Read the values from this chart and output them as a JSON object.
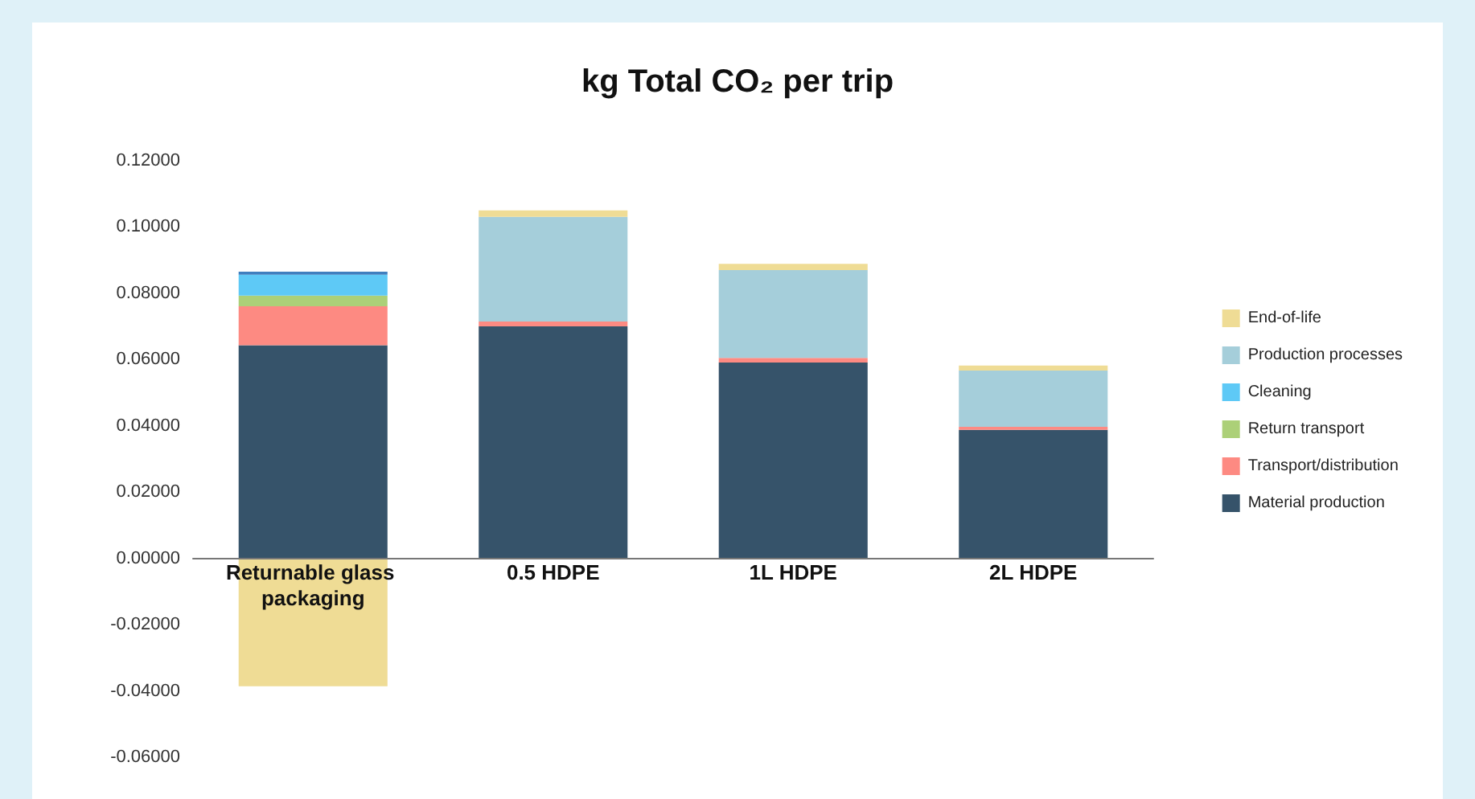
{
  "chart_data": {
    "type": "bar",
    "title": "kg Total CO₂ per trip",
    "stacked": true,
    "categories": [
      "Returnable glass packaging",
      "0.5 HDPE",
      "1L HDPE",
      "2L HDPE"
    ],
    "series": [
      {
        "name": "Material production",
        "color": "#36536a",
        "values": [
          0.0643,
          0.07,
          0.0591,
          0.0388
        ]
      },
      {
        "name": "Transport/distribution",
        "color": "#fd8a82",
        "values": [
          0.0118,
          0.0015,
          0.0014,
          0.0009
        ]
      },
      {
        "name": "Return transport",
        "color": "#acd078",
        "values": [
          0.0032,
          null,
          null,
          null
        ]
      },
      {
        "name": "Cleaning",
        "color": "#5ec9f6",
        "values": [
          0.0063,
          null,
          null,
          null
        ]
      },
      {
        "color": "#3f7fbf",
        "values": [
          0.0009,
          null,
          null,
          null
        ]
      },
      {
        "name": "Production processes",
        "color": "#a5ceda",
        "values": [
          null,
          0.0316,
          0.0265,
          0.017
        ]
      },
      {
        "name": "End-of-life",
        "color": "#efdc95",
        "values": [
          -0.0386,
          0.0019,
          0.0019,
          0.0015
        ]
      }
    ],
    "ylim": [
      -0.06,
      0.12
    ],
    "yticks": [
      {
        "value": -0.06,
        "label": "-0.06000"
      },
      {
        "value": -0.04,
        "label": "-0.04000"
      },
      {
        "value": -0.02,
        "label": "-0.02000"
      },
      {
        "value": 0,
        "label": "0.00000"
      },
      {
        "value": 0.02,
        "label": "0.02000"
      },
      {
        "value": 0.04,
        "label": "0.04000"
      },
      {
        "value": 0.06,
        "label": "0.06000"
      },
      {
        "value": 0.08,
        "label": "0.08000"
      },
      {
        "value": 0.1,
        "label": "0.10000"
      },
      {
        "value": 0.12,
        "label": "0.12000"
      }
    ],
    "legend": "right"
  }
}
